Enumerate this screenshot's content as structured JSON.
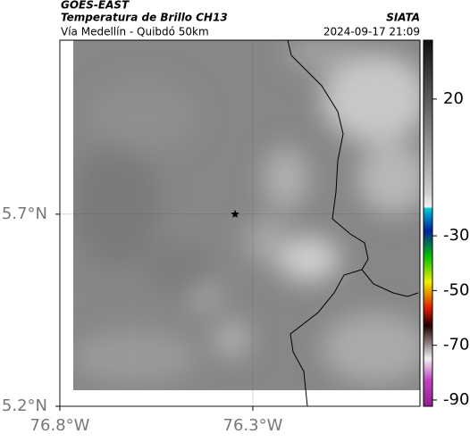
{
  "header": {
    "source": "GOES-EAST",
    "title": "Temperatura de Brillo CH13",
    "subtitle": "Vía Medellín - Quibdó 50km",
    "agency": "SIATA",
    "timestamp": "2024-09-17 21:09"
  },
  "map": {
    "xlim": [
      -76.8,
      -75.867
    ],
    "ylim": [
      5.2,
      6.153
    ],
    "xticks": [
      {
        "value": -76.8,
        "label": "76.8°W"
      },
      {
        "value": -76.3,
        "label": "76.3°W"
      }
    ],
    "yticks": [
      {
        "value": 5.2,
        "label": "5.2°N"
      },
      {
        "value": 5.7,
        "label": "5.7°N"
      }
    ],
    "grid": true,
    "marker": {
      "lon": -76.346,
      "lat": 5.7
    }
  },
  "colorbar": {
    "lim": [
      -92.3,
      41.5
    ],
    "ticks": [
      20,
      -30,
      -50,
      -70,
      -90
    ]
  }
}
